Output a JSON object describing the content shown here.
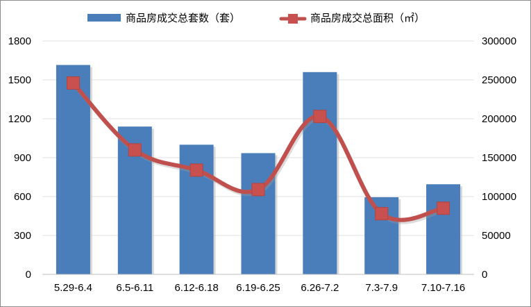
{
  "chart_data": {
    "type": "bar+line",
    "title": "",
    "categories": [
      "5.29-6.4",
      "6.5-6.11",
      "6.12-6.18",
      "6.19-6.25",
      "6.26-7.2",
      "7.3-7.9",
      "7.10-7.16"
    ],
    "series": [
      {
        "name": "商品房成交总套数（套）",
        "type": "bar",
        "axis": "left",
        "color": "#4a7ebb",
        "values": [
          1615,
          1140,
          1000,
          935,
          1560,
          595,
          695
        ]
      },
      {
        "name": "商品房成交总面积（㎡）",
        "type": "line",
        "axis": "right",
        "color": "#c0504d",
        "marker_color": "#c8504e",
        "smooth": true,
        "values": [
          246000,
          160000,
          134000,
          109000,
          203000,
          78000,
          85000
        ]
      }
    ],
    "y_left": {
      "min": 0,
      "max": 1800,
      "step": 300,
      "ticks": [
        "0",
        "300",
        "600",
        "900",
        "1200",
        "1500",
        "1800"
      ]
    },
    "y_right": {
      "min": 0,
      "max": 300000,
      "step": 50000,
      "ticks": [
        "0",
        "50000",
        "100000",
        "150000",
        "200000",
        "250000",
        "300000"
      ]
    },
    "grid": true,
    "legend_position": "top"
  }
}
